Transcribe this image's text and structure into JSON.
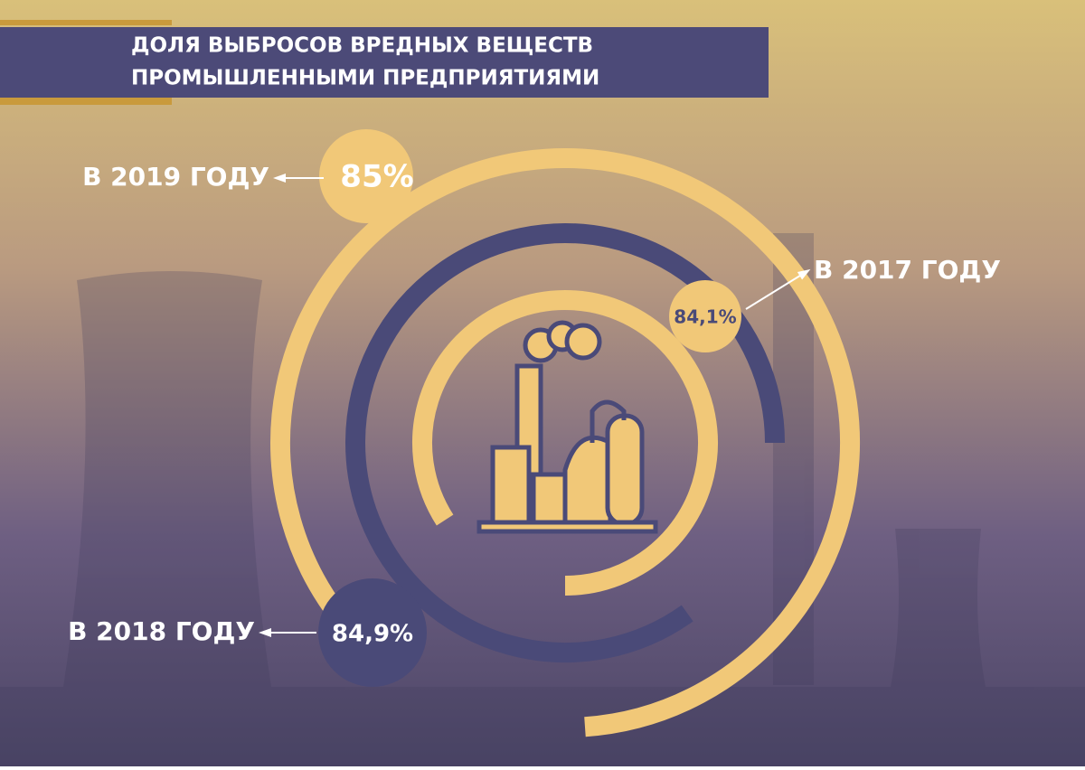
{
  "chart_data": {
    "type": "radial_bar",
    "title_lines": [
      "ДОЛЯ ВЫБРОСОВ ВРЕДНЫХ ВЕЩЕСТВ",
      "ПРОМЫШЛЕННЫМИ ПРЕДПРИЯТИЯМИ"
    ],
    "categories": [
      "В 2019 ГОДУ",
      "В 2018 ГОДУ",
      "В 2017 ГОДУ"
    ],
    "values": [
      85,
      84.9,
      84.1
    ],
    "value_labels": [
      "85%",
      "84,9%",
      "84,1%"
    ],
    "colors": [
      "#f1c878",
      "#4a4a78",
      "#f1c878"
    ],
    "ylim": [
      0,
      100
    ]
  }
}
